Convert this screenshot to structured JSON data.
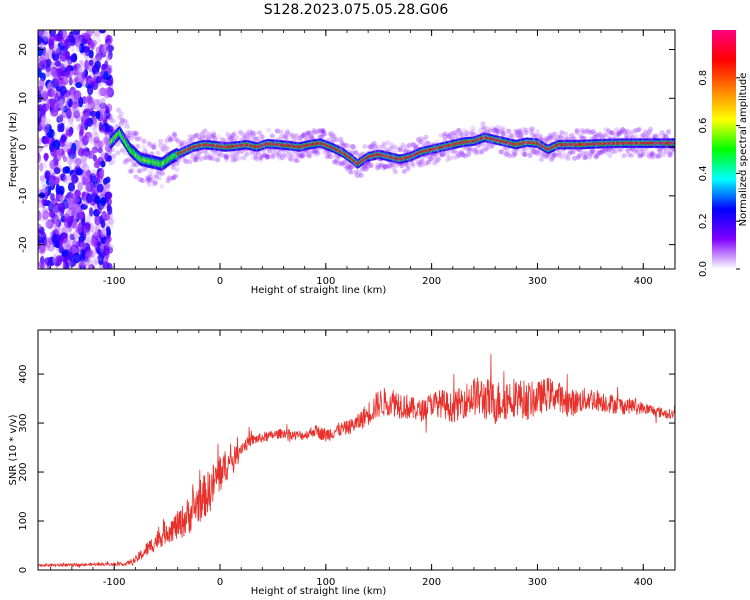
{
  "title": "S128.2023.075.05.28.G06",
  "chart_data": [
    {
      "type": "heatmap",
      "xlabel": "Height of straight line (km)",
      "ylabel": "Frequency (Hz)",
      "xlim": [
        -172,
        430
      ],
      "ylim": [
        -25,
        24
      ],
      "xticks": [
        -100,
        0,
        100,
        200,
        300,
        400
      ],
      "yticks": [
        -20,
        -10,
        0,
        10,
        20
      ],
      "colorbar": {
        "label": "Normalized spectral amplitude",
        "range": [
          0,
          1
        ],
        "ticks": [
          "0.0",
          "0.2",
          "0.4",
          "0.6",
          "0.8"
        ],
        "colors": [
          "#ffffff",
          "#8000ff",
          "#0000ff",
          "#00ffff",
          "#00ff00",
          "#ffff00",
          "#ff8000",
          "#ff0000",
          "#ff0080"
        ]
      },
      "ridge": {
        "x": [
          -105,
          -95,
          -85,
          -75,
          -65,
          -55,
          -45,
          -35,
          -25,
          -15,
          -5,
          5,
          15,
          25,
          35,
          45,
          55,
          65,
          75,
          85,
          95,
          105,
          115,
          125,
          130,
          140,
          150,
          160,
          170,
          180,
          190,
          200,
          210,
          220,
          230,
          240,
          250,
          260,
          270,
          280,
          290,
          300,
          310,
          320,
          340,
          360,
          380,
          400,
          430
        ],
        "y": [
          0.5,
          3.0,
          -0.5,
          -2.5,
          -3.0,
          -3.5,
          -2.0,
          -1.0,
          0.0,
          0.5,
          0.3,
          0.0,
          0.2,
          0.5,
          0.0,
          0.7,
          0.5,
          0.3,
          0.0,
          0.5,
          0.8,
          0.0,
          -1.0,
          -2.5,
          -3.5,
          -2.0,
          -1.5,
          -2.0,
          -2.5,
          -2.0,
          -1.0,
          -0.5,
          0.0,
          0.5,
          1.0,
          1.2,
          2.0,
          1.5,
          1.0,
          0.5,
          1.0,
          0.8,
          -0.5,
          0.5,
          0.5,
          0.7,
          0.8,
          0.8,
          0.8
        ]
      },
      "noise_region_x": [
        -172,
        -103
      ]
    },
    {
      "type": "line",
      "xlabel": "Height of straight line (km)",
      "ylabel": "SNR (10 * v/v)",
      "xlim": [
        -172,
        430
      ],
      "ylim": [
        0,
        490
      ],
      "xticks": [
        -100,
        0,
        100,
        200,
        300,
        400
      ],
      "yticks": [
        0,
        100,
        200,
        300,
        400
      ],
      "color": "#e8302b",
      "series": [
        {
          "x": [
            -172,
            -140,
            -110,
            -90,
            -80,
            -70,
            -60,
            -50,
            -40,
            -30,
            -20,
            -10,
            0,
            10,
            20,
            30,
            40,
            50,
            60,
            70,
            80,
            90,
            100,
            110,
            120,
            130,
            140,
            150,
            160,
            170,
            180,
            190,
            200,
            210,
            220,
            230,
            240,
            250,
            260,
            270,
            280,
            290,
            300,
            310,
            320,
            330,
            340,
            350,
            360,
            370,
            380,
            390,
            400,
            410,
            420,
            430
          ],
          "y": [
            10,
            10,
            12,
            12,
            20,
            40,
            60,
            80,
            90,
            110,
            140,
            160,
            200,
            220,
            250,
            265,
            270,
            275,
            280,
            275,
            275,
            285,
            275,
            285,
            290,
            300,
            320,
            340,
            345,
            340,
            330,
            325,
            340,
            340,
            330,
            345,
            355,
            350,
            340,
            350,
            355,
            345,
            350,
            360,
            355,
            340,
            345,
            350,
            345,
            340,
            335,
            335,
            330,
            325,
            320,
            318
          ],
          "spread": [
            3,
            3,
            3,
            3,
            8,
            15,
            20,
            25,
            30,
            40,
            45,
            45,
            45,
            25,
            15,
            12,
            10,
            10,
            10,
            10,
            10,
            12,
            15,
            15,
            15,
            18,
            25,
            30,
            30,
            30,
            25,
            22,
            25,
            30,
            30,
            35,
            40,
            45,
            45,
            45,
            40,
            40,
            35,
            35,
            30,
            30,
            25,
            25,
            22,
            20,
            18,
            15,
            12,
            12,
            10,
            10
          ]
        }
      ]
    }
  ]
}
